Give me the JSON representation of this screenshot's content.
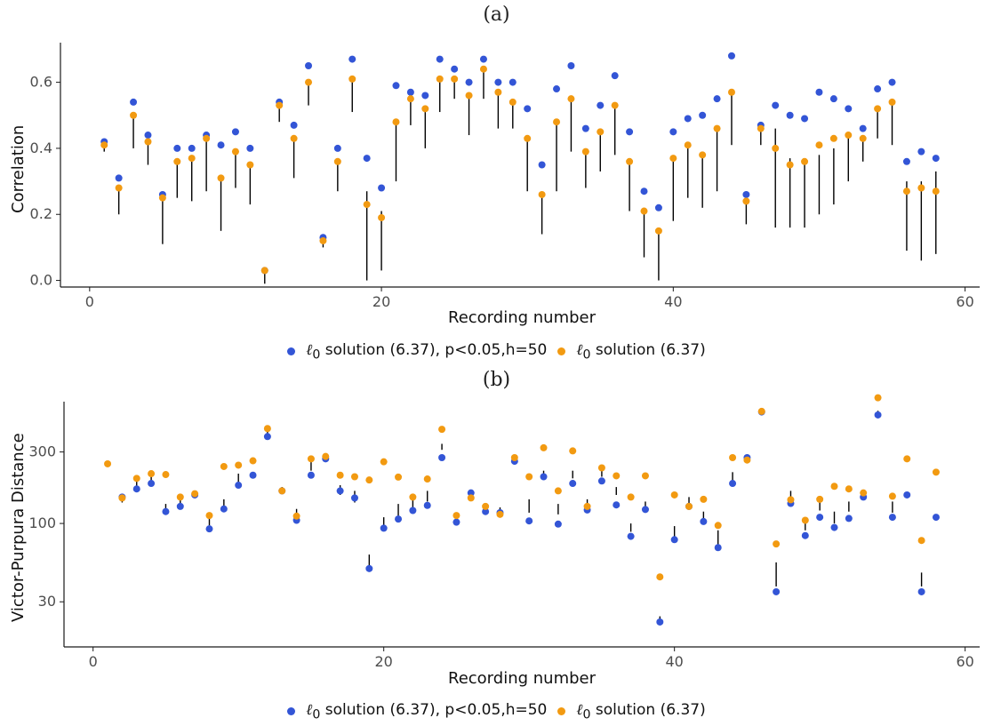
{
  "colors": {
    "series1": "#3355d6",
    "series2": "#f29a11",
    "segment": "#000000",
    "axis": "#1a1a1a",
    "tick_text": "#4d4d4d"
  },
  "panels": {
    "a": {
      "label": "(a)"
    },
    "b": {
      "label": "(b)"
    }
  },
  "legend": {
    "item1_prefix": "ℓ",
    "item1_sub": "0",
    "item1_text": " solution (6.37), p<0.05,h=50",
    "item2_prefix": "ℓ",
    "item2_sub": "0",
    "item2_text": " solution (6.37)"
  },
  "chart_data": [
    {
      "id": "a",
      "type": "scatter",
      "title": "(a)",
      "xlabel": "Recording number",
      "ylabel": "Correlation",
      "xlim": [
        -2,
        61
      ],
      "ylim": [
        -0.02,
        0.72
      ],
      "xticks": [
        0,
        20,
        40,
        60
      ],
      "yticks": [
        0.0,
        0.2,
        0.4,
        0.6
      ],
      "ytick_labels": [
        "0.0",
        "0.2",
        "0.4",
        "0.6"
      ],
      "scale": "linear",
      "x": [
        1,
        2,
        3,
        4,
        5,
        6,
        7,
        8,
        9,
        10,
        11,
        12,
        13,
        14,
        15,
        16,
        17,
        18,
        19,
        20,
        21,
        22,
        23,
        24,
        25,
        26,
        27,
        28,
        29,
        30,
        31,
        32,
        33,
        34,
        35,
        36,
        37,
        38,
        39,
        40,
        41,
        42,
        43,
        44,
        45,
        46,
        47,
        48,
        49,
        50,
        51,
        52,
        53,
        54,
        55,
        56,
        57,
        58
      ],
      "series": [
        {
          "name": "ℓ0 solution (6.37), p<0.05,h=50",
          "values": [
            0.42,
            0.31,
            0.54,
            0.44,
            0.26,
            0.4,
            0.4,
            0.44,
            0.41,
            0.45,
            0.4,
            0.03,
            0.54,
            0.47,
            0.65,
            0.13,
            0.4,
            0.67,
            0.37,
            0.28,
            0.59,
            0.57,
            0.56,
            0.67,
            0.64,
            0.6,
            0.67,
            0.6,
            0.6,
            0.52,
            0.35,
            0.58,
            0.65,
            0.46,
            0.53,
            0.62,
            0.45,
            0.27,
            0.22,
            0.45,
            0.49,
            0.5,
            0.55,
            0.68,
            0.26,
            0.47,
            0.53,
            0.5,
            0.49,
            0.57,
            0.55,
            0.52,
            0.46,
            0.58,
            0.6,
            0.36,
            0.39,
            0.37
          ]
        },
        {
          "name": "ℓ0 solution (6.37)",
          "values": [
            0.41,
            0.28,
            0.5,
            0.42,
            0.25,
            0.36,
            0.37,
            0.43,
            0.31,
            0.39,
            0.35,
            0.03,
            0.53,
            0.43,
            0.6,
            0.12,
            0.36,
            0.61,
            0.23,
            0.19,
            0.48,
            0.55,
            0.52,
            0.61,
            0.61,
            0.56,
            0.64,
            0.57,
            0.54,
            0.43,
            0.26,
            0.48,
            0.55,
            0.39,
            0.45,
            0.53,
            0.36,
            0.21,
            0.15,
            0.37,
            0.41,
            0.38,
            0.46,
            0.57,
            0.24,
            0.46,
            0.4,
            0.35,
            0.36,
            0.41,
            0.43,
            0.44,
            0.43,
            0.52,
            0.54,
            0.27,
            0.28,
            0.27
          ]
        }
      ],
      "segments": [
        [
          1,
          0.39,
          0.41
        ],
        [
          2,
          0.2,
          0.28
        ],
        [
          3,
          0.4,
          0.5
        ],
        [
          4,
          0.35,
          0.42
        ],
        [
          5,
          0.11,
          0.25
        ],
        [
          6,
          0.25,
          0.36
        ],
        [
          7,
          0.24,
          0.37
        ],
        [
          8,
          0.27,
          0.43
        ],
        [
          9,
          0.15,
          0.31
        ],
        [
          10,
          0.28,
          0.39
        ],
        [
          11,
          0.23,
          0.35
        ],
        [
          12,
          -0.01,
          0.03
        ],
        [
          13,
          0.48,
          0.53
        ],
        [
          14,
          0.31,
          0.43
        ],
        [
          15,
          0.53,
          0.6
        ],
        [
          16,
          0.1,
          0.12
        ],
        [
          17,
          0.27,
          0.36
        ],
        [
          18,
          0.51,
          0.61
        ],
        [
          19,
          0.0,
          0.27
        ],
        [
          20,
          0.03,
          0.21
        ],
        [
          21,
          0.3,
          0.48
        ],
        [
          22,
          0.47,
          0.55
        ],
        [
          23,
          0.4,
          0.52
        ],
        [
          24,
          0.51,
          0.61
        ],
        [
          25,
          0.55,
          0.61
        ],
        [
          26,
          0.44,
          0.56
        ],
        [
          27,
          0.55,
          0.64
        ],
        [
          28,
          0.46,
          0.57
        ],
        [
          29,
          0.46,
          0.54
        ],
        [
          30,
          0.27,
          0.43
        ],
        [
          31,
          0.14,
          0.26
        ],
        [
          32,
          0.27,
          0.48
        ],
        [
          33,
          0.39,
          0.55
        ],
        [
          34,
          0.28,
          0.39
        ],
        [
          35,
          0.33,
          0.45
        ],
        [
          36,
          0.38,
          0.53
        ],
        [
          37,
          0.21,
          0.36
        ],
        [
          38,
          0.07,
          0.21
        ],
        [
          39,
          0.0,
          0.15
        ],
        [
          40,
          0.18,
          0.37
        ],
        [
          41,
          0.25,
          0.41
        ],
        [
          42,
          0.22,
          0.38
        ],
        [
          43,
          0.27,
          0.46
        ],
        [
          44,
          0.41,
          0.57
        ],
        [
          45,
          0.17,
          0.24
        ],
        [
          46,
          0.41,
          0.46
        ],
        [
          47,
          0.16,
          0.46
        ],
        [
          48,
          0.16,
          0.37
        ],
        [
          49,
          0.16,
          0.37
        ],
        [
          50,
          0.2,
          0.38
        ],
        [
          51,
          0.23,
          0.4
        ],
        [
          52,
          0.3,
          0.44
        ],
        [
          53,
          0.36,
          0.43
        ],
        [
          54,
          0.43,
          0.52
        ],
        [
          55,
          0.41,
          0.54
        ],
        [
          56,
          0.09,
          0.3
        ],
        [
          57,
          0.06,
          0.3
        ],
        [
          58,
          0.08,
          0.33
        ]
      ],
      "grid": false,
      "legend_position": "bottom"
    },
    {
      "id": "b",
      "type": "scatter",
      "title": "(b)",
      "xlabel": "Recording number",
      "ylabel": "Victor-Purpura Distance",
      "xlim": [
        -2,
        61
      ],
      "ylim": [
        15,
        650
      ],
      "xticks": [
        0,
        20,
        40,
        60
      ],
      "yticks": [
        30,
        100,
        300
      ],
      "ytick_labels": [
        "30",
        "100",
        "300"
      ],
      "scale": "log",
      "x": [
        1,
        2,
        3,
        4,
        5,
        6,
        7,
        8,
        9,
        10,
        11,
        12,
        13,
        14,
        15,
        16,
        17,
        18,
        19,
        20,
        21,
        22,
        23,
        24,
        25,
        26,
        27,
        28,
        29,
        30,
        31,
        32,
        33,
        34,
        35,
        36,
        37,
        38,
        39,
        40,
        41,
        42,
        43,
        44,
        45,
        46,
        47,
        48,
        49,
        50,
        51,
        52,
        53,
        54,
        55,
        56,
        57,
        58
      ],
      "series": [
        {
          "name": "ℓ0 solution (6.37), p<0.05,h=50",
          "values": [
            null,
            150,
            170,
            185,
            120,
            130,
            155,
            92,
            125,
            180,
            210,
            380,
            165,
            105,
            210,
            270,
            165,
            148,
            50,
            93,
            107,
            122,
            132,
            275,
            102,
            160,
            120,
            118,
            260,
            104,
            205,
            99,
            185,
            123,
            192,
            133,
            82,
            124,
            22,
            78,
            130,
            103,
            69,
            185,
            275,
            555,
            35,
            136,
            83,
            110,
            94,
            108,
            150,
            530,
            110,
            155,
            35,
            110
          ]
        },
        {
          "name": "ℓ0 solution (6.37)",
          "values": [
            250,
            148,
            200,
            215,
            212,
            150,
            158,
            113,
            240,
            245,
            262,
            430,
            165,
            112,
            270,
            280,
            210,
            205,
            195,
            258,
            204,
            150,
            198,
            425,
            113,
            148,
            130,
            115,
            275,
            205,
            320,
            165,
            305,
            130,
            235,
            208,
            150,
            208,
            44,
            155,
            130,
            145,
            97,
            275,
            265,
            560,
            73,
            144,
            105,
            145,
            177,
            170,
            160,
            690,
            152,
            270,
            77,
            220
          ]
        }
      ],
      "segments": [
        [
          2,
          138,
          153
        ],
        [
          3,
          165,
          200
        ],
        [
          4,
          180,
          215
        ],
        [
          5,
          115,
          135
        ],
        [
          6,
          125,
          150
        ],
        [
          7,
          150,
          165
        ],
        [
          8,
          97,
          113
        ],
        [
          9,
          125,
          145
        ],
        [
          10,
          180,
          215
        ],
        [
          11,
          210,
          220
        ],
        [
          12,
          380,
          430
        ],
        [
          13,
          160,
          175
        ],
        [
          14,
          105,
          125
        ],
        [
          15,
          225,
          265
        ],
        [
          16,
          260,
          285
        ],
        [
          17,
          155,
          180
        ],
        [
          18,
          138,
          165
        ],
        [
          19,
          52,
          62
        ],
        [
          20,
          95,
          110
        ],
        [
          21,
          110,
          135
        ],
        [
          22,
          122,
          150
        ],
        [
          23,
          140,
          165
        ],
        [
          24,
          310,
          340
        ],
        [
          25,
          106,
          113
        ],
        [
          26,
          145,
          165
        ],
        [
          27,
          118,
          132
        ],
        [
          28,
          113,
          128
        ],
        [
          29,
          260,
          280
        ],
        [
          30,
          118,
          145
        ],
        [
          31,
          210,
          225
        ],
        [
          32,
          115,
          135
        ],
        [
          33,
          200,
          225
        ],
        [
          34,
          125,
          145
        ],
        [
          35,
          205,
          230
        ],
        [
          36,
          155,
          175
        ],
        [
          37,
          88,
          100
        ],
        [
          38,
          124,
          140
        ],
        [
          39,
          22,
          24
        ],
        [
          40,
          82,
          96
        ],
        [
          41,
          132,
          150
        ],
        [
          42,
          106,
          120
        ],
        [
          43,
          72,
          90
        ],
        [
          44,
          190,
          220
        ],
        [
          45,
          270,
          285
        ],
        [
          46,
          560,
          580
        ],
        [
          47,
          38,
          55
        ],
        [
          48,
          140,
          165
        ],
        [
          49,
          90,
          103
        ],
        [
          50,
          122,
          140
        ],
        [
          51,
          100,
          120
        ],
        [
          52,
          120,
          140
        ],
        [
          53,
          152,
          160
        ],
        [
          54,
          540,
          565
        ],
        [
          55,
          118,
          140
        ],
        [
          56,
          150,
          160
        ],
        [
          57,
          38,
          47
        ],
        [
          58,
          110,
          115
        ]
      ],
      "grid": false,
      "legend_position": "bottom"
    }
  ]
}
